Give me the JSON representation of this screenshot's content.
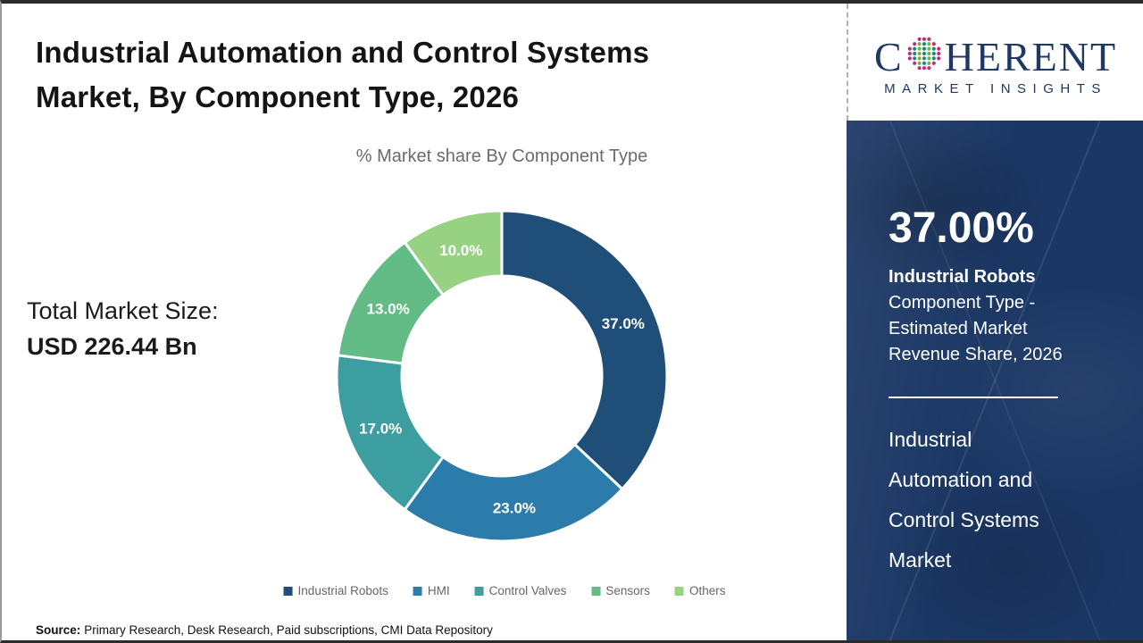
{
  "header": {
    "title_line1": "Industrial Automation and Control Systems",
    "title_line2": "Market, By Component Type, 2026"
  },
  "subtitle": "% Market share By Component Type",
  "total_market": {
    "label": "Total Market Size:",
    "value": "USD 226.44 Bn"
  },
  "chart_data": {
    "type": "pie",
    "donut": true,
    "title": "% Market share By Component Type",
    "categories": [
      "Industrial Robots",
      "HMI",
      "Control Valves",
      "Sensors",
      "Others"
    ],
    "values": [
      37.0,
      23.0,
      17.0,
      13.0,
      10.0
    ],
    "labels": [
      "37.0%",
      "23.0%",
      "17.0%",
      "13.0%",
      "10.0%"
    ],
    "colors": [
      "#1F4E79",
      "#2B7CAB",
      "#3D9EA2",
      "#63BB85",
      "#97D283"
    ],
    "start_angle_deg": 0,
    "direction": "clockwise",
    "legend_position": "bottom"
  },
  "source": {
    "label": "Source:",
    "text": "Primary Research, Desk Research, Paid subscriptions, CMI Data Repository"
  },
  "sidebar": {
    "logo": {
      "brand_pre": "C",
      "brand_post": "HERENT",
      "tagline": "MARKET INSIGHTS",
      "navy": "#1F3864",
      "dot_colors": [
        "#1B8A80",
        "#76B043",
        "#C42A80"
      ]
    },
    "panel_color": "#1B3764",
    "stat_value": "37.00%",
    "stat_title": "Industrial Robots",
    "stat_desc": "Component Type - Estimated Market Revenue Share, 2026",
    "market_name": "Industrial Automation and Control Systems Market"
  }
}
